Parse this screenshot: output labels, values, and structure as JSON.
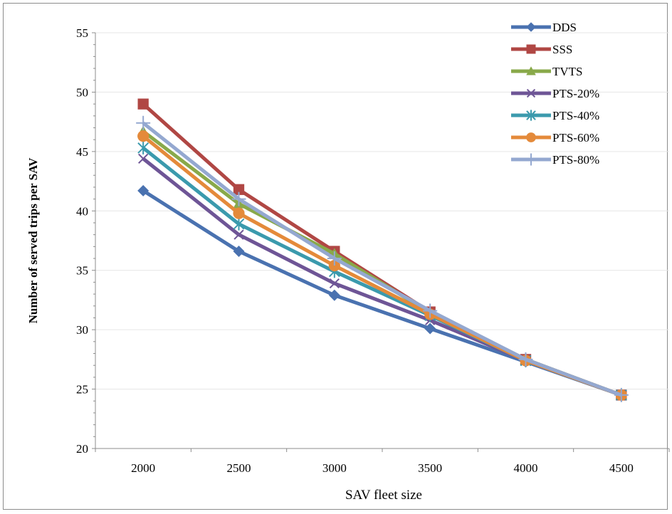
{
  "chart_data": {
    "type": "line",
    "xlabel": "SAV fleet size",
    "ylabel": "Number of served  trips per SAV",
    "ylim": [
      20,
      55
    ],
    "yticks": [
      20,
      25,
      30,
      35,
      40,
      45,
      50,
      55
    ],
    "x": [
      2000,
      2500,
      3000,
      3500,
      4000,
      4500
    ],
    "grid": "horizontal",
    "legend_position": "top-right",
    "series": [
      {
        "name": "DDS",
        "color": "#4a72b0",
        "marker": "diamond",
        "values": [
          41.7,
          36.6,
          32.9,
          30.1,
          27.3,
          24.5
        ]
      },
      {
        "name": "SSS",
        "color": "#b04744",
        "marker": "square",
        "values": [
          49.0,
          41.8,
          36.6,
          31.5,
          27.5,
          24.5
        ]
      },
      {
        "name": "TVTS",
        "color": "#89a94a",
        "marker": "triangle",
        "values": [
          46.7,
          40.6,
          36.4,
          31.4,
          27.5,
          24.5
        ]
      },
      {
        "name": "PTS-20%",
        "color": "#6e5596",
        "marker": "x",
        "values": [
          44.4,
          38.0,
          33.9,
          30.8,
          27.4,
          24.5
        ]
      },
      {
        "name": "PTS-40%",
        "color": "#3b9aad",
        "marker": "star",
        "values": [
          45.3,
          38.9,
          34.9,
          31.2,
          27.4,
          24.5
        ]
      },
      {
        "name": "PTS-60%",
        "color": "#e48a3a",
        "marker": "circle",
        "values": [
          46.3,
          39.8,
          35.4,
          31.3,
          27.4,
          24.5
        ]
      },
      {
        "name": "PTS-80%",
        "color": "#94a8d0",
        "marker": "plus",
        "values": [
          47.4,
          41.0,
          36.0,
          31.6,
          27.5,
          24.5
        ]
      }
    ]
  }
}
